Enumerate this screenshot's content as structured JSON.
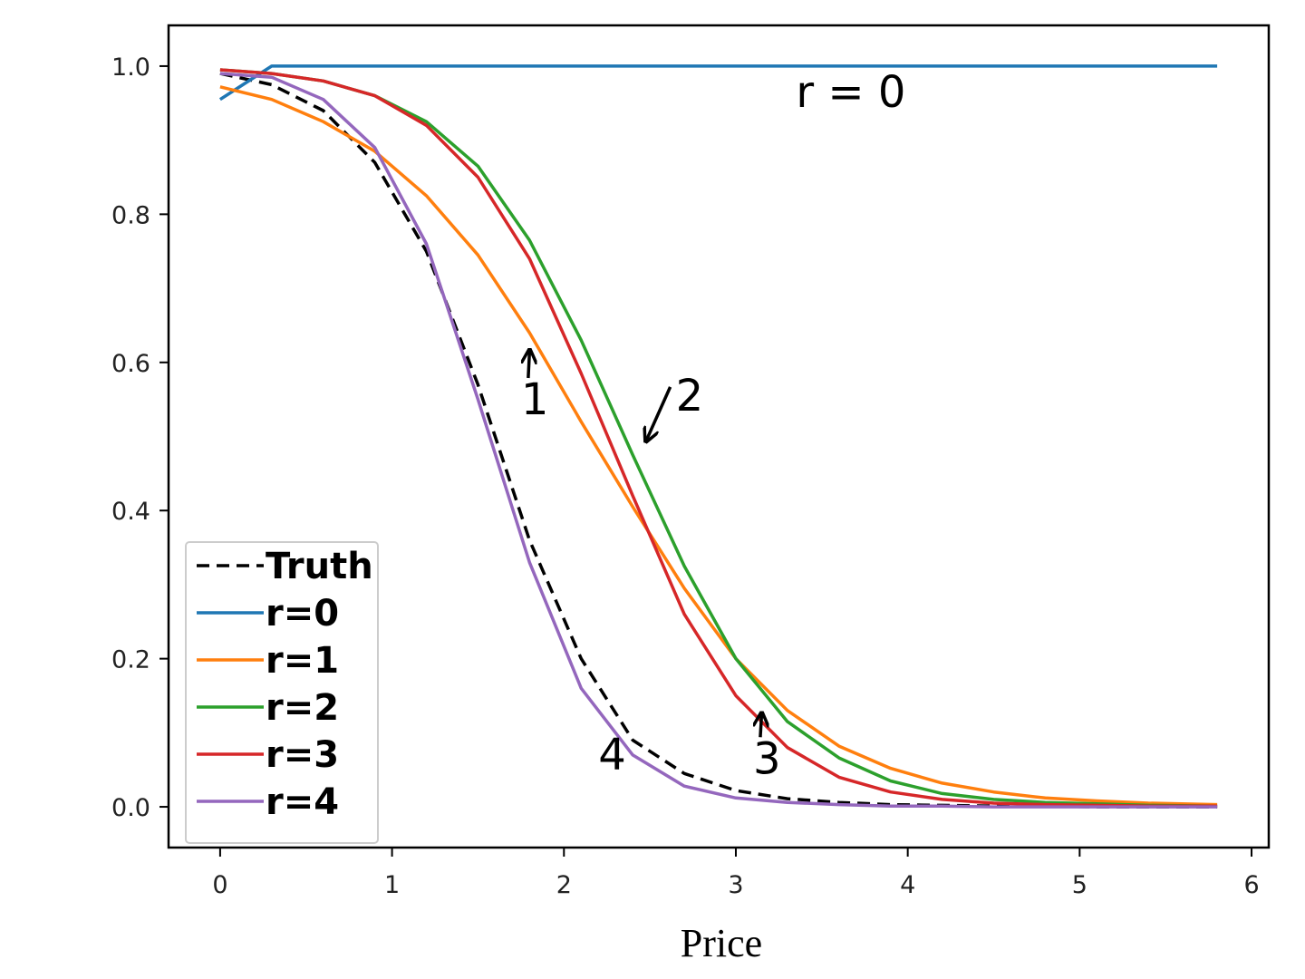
{
  "chart_data": {
    "type": "line",
    "xlabel": "Price",
    "ylabel": "",
    "title": "",
    "xlim": [
      -0.3,
      6.1
    ],
    "ylim": [
      -0.055,
      1.055
    ],
    "xticks": [
      0,
      1,
      2,
      3,
      4,
      5,
      6
    ],
    "xtick_labels": [
      "0",
      "1",
      "2",
      "3",
      "4",
      "5",
      "6"
    ],
    "yticks": [
      0.0,
      0.2,
      0.4,
      0.6,
      0.8,
      1.0
    ],
    "ytick_labels": [
      "0.0",
      "0.2",
      "0.4",
      "0.6",
      "0.8",
      "1.0"
    ],
    "grid": false,
    "legend_position": "lower-left",
    "x": [
      0.0,
      0.3,
      0.6,
      0.9,
      1.2,
      1.5,
      1.8,
      2.1,
      2.4,
      2.7,
      3.0,
      3.3,
      3.6,
      3.9,
      4.2,
      4.5,
      4.8,
      5.1,
      5.4,
      5.8
    ],
    "series": [
      {
        "name": "Truth",
        "color": "#000000",
        "dash": true,
        "values": [
          0.99,
          0.975,
          0.94,
          0.87,
          0.75,
          0.57,
          0.36,
          0.2,
          0.09,
          0.045,
          0.022,
          0.011,
          0.006,
          0.003,
          0.002,
          0.001,
          0.001,
          0.0,
          0.0,
          0.0
        ]
      },
      {
        "name": "r=0",
        "color": "#1f77b4",
        "dash": false,
        "values": [
          0.955,
          1.0,
          1.0,
          1.0,
          1.0,
          1.0,
          1.0,
          1.0,
          1.0,
          1.0,
          1.0,
          1.0,
          1.0,
          1.0,
          1.0,
          1.0,
          1.0,
          1.0,
          1.0,
          1.0
        ]
      },
      {
        "name": "r=1",
        "color": "#ff7f0e",
        "dash": false,
        "values": [
          0.972,
          0.955,
          0.925,
          0.885,
          0.825,
          0.745,
          0.64,
          0.52,
          0.405,
          0.295,
          0.2,
          0.13,
          0.082,
          0.052,
          0.032,
          0.02,
          0.012,
          0.008,
          0.005,
          0.003
        ]
      },
      {
        "name": "r=2",
        "color": "#2ca02c",
        "dash": false,
        "values": [
          0.995,
          0.99,
          0.98,
          0.96,
          0.925,
          0.865,
          0.765,
          0.63,
          0.475,
          0.325,
          0.2,
          0.115,
          0.066,
          0.035,
          0.018,
          0.01,
          0.006,
          0.004,
          0.002,
          0.001
        ]
      },
      {
        "name": "r=3",
        "color": "#d62728",
        "dash": false,
        "values": [
          0.995,
          0.99,
          0.98,
          0.96,
          0.92,
          0.85,
          0.74,
          0.585,
          0.42,
          0.26,
          0.15,
          0.08,
          0.04,
          0.02,
          0.01,
          0.005,
          0.003,
          0.002,
          0.001,
          0.001
        ]
      },
      {
        "name": "r=4",
        "color": "#9467bd",
        "dash": false,
        "values": [
          0.99,
          0.985,
          0.955,
          0.89,
          0.76,
          0.55,
          0.33,
          0.16,
          0.07,
          0.028,
          0.012,
          0.006,
          0.003,
          0.001,
          0.001,
          0.0,
          0.0,
          0.0,
          0.0,
          0.0
        ]
      }
    ],
    "annotations": [
      {
        "text": "r = 0",
        "x": 3.35,
        "y": 0.945
      },
      {
        "text": "1",
        "x": 1.75,
        "y": 0.53,
        "arrow_to": [
          1.8,
          0.615
        ]
      },
      {
        "text": "2",
        "x": 2.65,
        "y": 0.535,
        "arrow_to": [
          2.48,
          0.495
        ]
      },
      {
        "text": "3",
        "x": 3.1,
        "y": 0.045,
        "arrow_to": [
          3.15,
          0.125
        ]
      },
      {
        "text": "4",
        "x": 2.2,
        "y": 0.05
      }
    ]
  }
}
